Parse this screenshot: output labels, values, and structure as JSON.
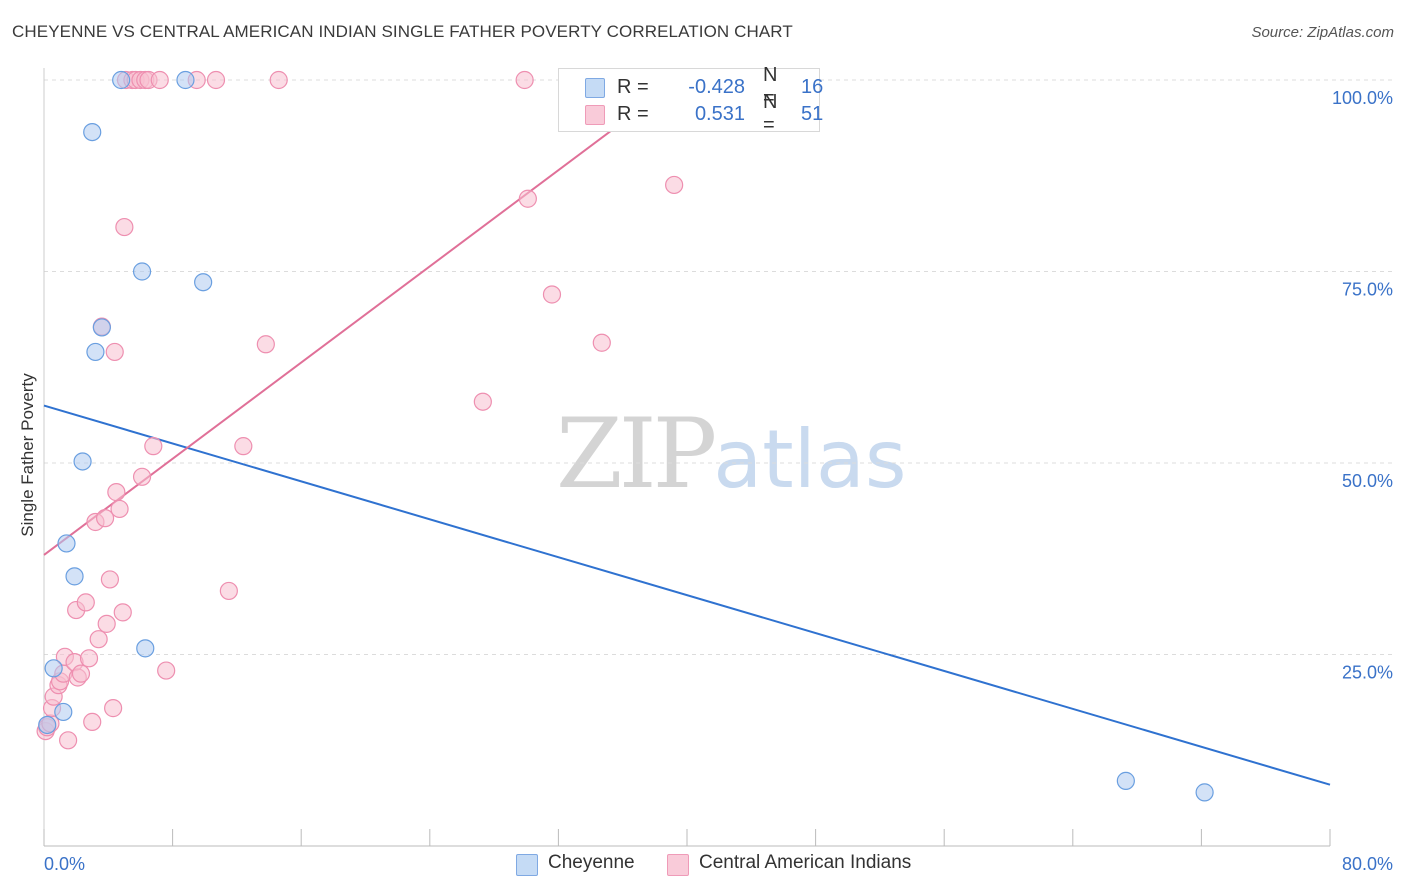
{
  "header": {
    "title": "CHEYENNE VS CENTRAL AMERICAN INDIAN SINGLE FATHER POVERTY CORRELATION CHART",
    "source": "Source: ZipAtlas.com"
  },
  "watermark": {
    "zip": "ZIP",
    "atlas": "atlas"
  },
  "legend": {
    "rows": [
      {
        "r_label": "R =",
        "r_value": "-0.428",
        "n_label": "N =",
        "n_value": "16",
        "color": "#aecbf0"
      },
      {
        "r_label": "R =",
        "r_value": "0.531",
        "n_label": "N =",
        "n_value": "51",
        "color": "#f7bfd0"
      }
    ]
  },
  "bottom_legend": {
    "items": [
      {
        "label": "Cheyenne",
        "color": "#aecbf0"
      },
      {
        "label": "Central American Indians",
        "color": "#f7bfd0"
      }
    ]
  },
  "chart_data": {
    "type": "scatter",
    "title": "CHEYENNE VS CENTRAL AMERICAN INDIAN SINGLE FATHER POVERTY CORRELATION CHART",
    "xlabel": "",
    "ylabel": "Single Father Poverty",
    "xlim": [
      0,
      80
    ],
    "ylim": [
      0,
      100
    ],
    "x_tick_labels": [
      "0.0%",
      "80.0%"
    ],
    "y_tick_labels": [
      "25.0%",
      "50.0%",
      "75.0%",
      "100.0%"
    ],
    "y_ticks": [
      25,
      50,
      75,
      100
    ],
    "grid": true,
    "legend_position": "top-center",
    "series": [
      {
        "name": "Cheyenne",
        "color": "#6a9fe0",
        "fill": "#aecbf0",
        "line_color": "#2f72d0",
        "r": -0.428,
        "n": 16,
        "trend": {
          "x": [
            0,
            80
          ],
          "y": [
            57.5,
            8
          ]
        },
        "points": [
          [
            0.2,
            15.8
          ],
          [
            0.6,
            23.2
          ],
          [
            1.2,
            17.5
          ],
          [
            1.4,
            39.5
          ],
          [
            1.9,
            35.2
          ],
          [
            2.4,
            50.2
          ],
          [
            3.0,
            93.2
          ],
          [
            3.2,
            64.5
          ],
          [
            3.6,
            67.7
          ],
          [
            4.8,
            100
          ],
          [
            6.1,
            75.0
          ],
          [
            6.3,
            25.8
          ],
          [
            8.8,
            100
          ],
          [
            9.9,
            73.6
          ],
          [
            67.3,
            8.5
          ],
          [
            72.2,
            7.0
          ]
        ]
      },
      {
        "name": "Central American Indians",
        "color": "#ee8fb0",
        "fill": "#f7bfd0",
        "line_color": "#e07098",
        "r": 0.531,
        "n": 51,
        "trend": {
          "x": [
            0,
            39.5
          ],
          "y": [
            38,
            100
          ]
        },
        "points": [
          [
            0.1,
            15.0
          ],
          [
            0.2,
            15.5
          ],
          [
            0.4,
            16.0
          ],
          [
            0.5,
            18.0
          ],
          [
            0.6,
            19.5
          ],
          [
            0.9,
            21.0
          ],
          [
            1.0,
            21.5
          ],
          [
            1.2,
            22.5
          ],
          [
            1.3,
            24.7
          ],
          [
            1.5,
            13.8
          ],
          [
            1.9,
            24.0
          ],
          [
            2.0,
            30.8
          ],
          [
            2.1,
            22.0
          ],
          [
            2.3,
            22.5
          ],
          [
            2.6,
            31.8
          ],
          [
            2.8,
            24.5
          ],
          [
            3.0,
            16.2
          ],
          [
            3.2,
            42.3
          ],
          [
            3.4,
            27.0
          ],
          [
            3.6,
            67.8
          ],
          [
            3.8,
            42.8
          ],
          [
            3.9,
            29.0
          ],
          [
            4.1,
            34.8
          ],
          [
            4.3,
            18.0
          ],
          [
            4.4,
            64.5
          ],
          [
            4.5,
            46.2
          ],
          [
            4.7,
            44.0
          ],
          [
            4.9,
            30.5
          ],
          [
            5.0,
            80.8
          ],
          [
            5.1,
            100
          ],
          [
            5.5,
            100
          ],
          [
            5.7,
            100
          ],
          [
            6.0,
            100
          ],
          [
            6.1,
            48.2
          ],
          [
            6.3,
            100
          ],
          [
            6.5,
            100
          ],
          [
            6.8,
            52.2
          ],
          [
            7.2,
            100
          ],
          [
            7.6,
            22.9
          ],
          [
            9.5,
            100
          ],
          [
            10.7,
            100
          ],
          [
            11.5,
            33.3
          ],
          [
            12.4,
            52.2
          ],
          [
            13.8,
            65.5
          ],
          [
            14.6,
            100
          ],
          [
            27.3,
            58.0
          ],
          [
            29.9,
            100
          ],
          [
            30.1,
            84.5
          ],
          [
            31.6,
            72.0
          ],
          [
            34.7,
            65.7
          ],
          [
            39.2,
            86.3
          ]
        ]
      }
    ]
  }
}
